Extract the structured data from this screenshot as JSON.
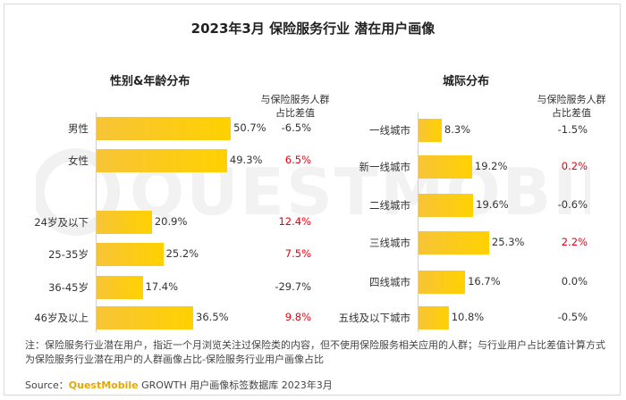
{
  "title": "2023年3月 保险服务行业 潜在用户画像",
  "watermark": "QUESTMOBILE",
  "colors": {
    "bar": "#ffd100",
    "positive": "#e60012",
    "neutral": "#333333"
  },
  "chart_data": [
    {
      "type": "bar",
      "orientation": "horizontal",
      "title": "性别&年龄分布",
      "diff_header": [
        "与保险服务人群",
        "占比差值"
      ],
      "xlim": [
        0,
        60
      ],
      "categories": [
        "男性",
        "女性",
        "24岁及以下",
        "25-35岁",
        "36-45岁",
        "46岁及以上"
      ],
      "values": [
        50.7,
        49.3,
        20.9,
        25.2,
        17.4,
        36.5
      ],
      "value_labels": [
        "50.7%",
        "49.3%",
        "20.9%",
        "25.2%",
        "17.4%",
        "36.5%"
      ],
      "diffs": [
        "-6.5%",
        "6.5%",
        "12.4%",
        "7.5%",
        "-29.7%",
        "9.8%"
      ],
      "diff_colors": [
        "#333333",
        "#e60012",
        "#e60012",
        "#e60012",
        "#333333",
        "#e60012"
      ]
    },
    {
      "type": "bar",
      "orientation": "horizontal",
      "title": "城际分布",
      "diff_header": [
        "与保险服务人群",
        "占比差值"
      ],
      "xlim": [
        0,
        30
      ],
      "categories": [
        "一线城市",
        "新一线城市",
        "二线城市",
        "三线城市",
        "四线城市",
        "五线及以下城市"
      ],
      "values": [
        8.3,
        19.2,
        19.6,
        25.3,
        16.7,
        10.8
      ],
      "value_labels": [
        "8.3%",
        "19.2%",
        "19.6%",
        "25.3%",
        "16.7%",
        "10.8%"
      ],
      "diffs": [
        "-1.5%",
        "0.2%",
        "-0.6%",
        "2.2%",
        "0.0%",
        "-0.5%"
      ],
      "diff_colors": [
        "#333333",
        "#e60012",
        "#333333",
        "#e60012",
        "#333333",
        "#333333"
      ]
    }
  ],
  "note": "注：保险服务行业潜在用户，指近一个月浏览关注过保险类的内容，但不使用保险服务相关应用的人群；与行业用户占比差值计算方式为保险服务行业潜在用户的人群画像占比-保险服务行业用户画像占比",
  "source": {
    "prefix": "Source：",
    "brand": "QuestMobile",
    "suffix": " GROWTH 用户画像标签数据库 2023年3月"
  }
}
